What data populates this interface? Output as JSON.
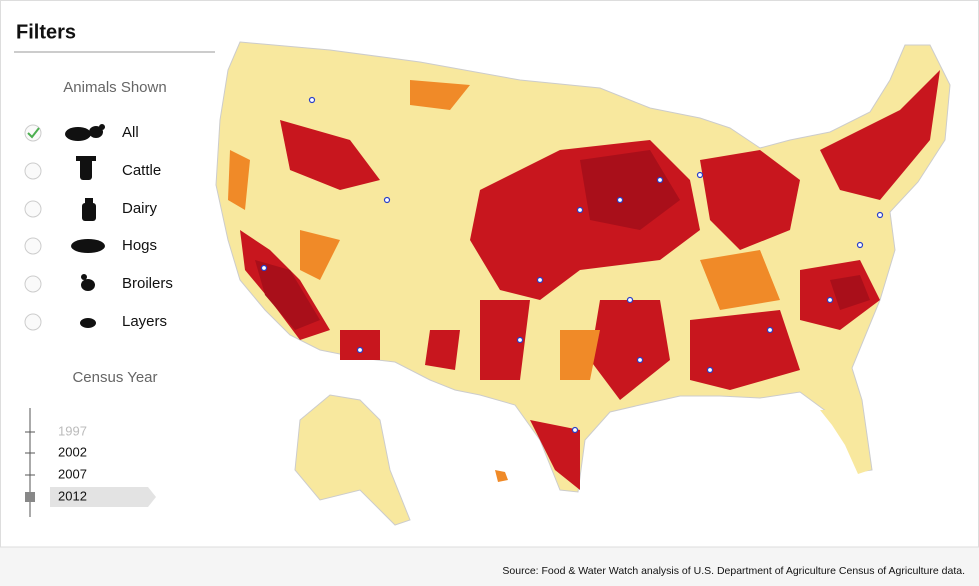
{
  "header": {
    "title": "Filters"
  },
  "animals": {
    "heading": "Animals Shown",
    "options": [
      {
        "label": "All",
        "checked": true
      },
      {
        "label": "Cattle",
        "checked": false
      },
      {
        "label": "Dairy",
        "checked": false
      },
      {
        "label": "Hogs",
        "checked": false
      },
      {
        "label": "Broilers",
        "checked": false
      },
      {
        "label": "Layers",
        "checked": false
      }
    ]
  },
  "census": {
    "heading": "Census Year",
    "years": [
      {
        "label": "1997",
        "selected": false,
        "disabled": true
      },
      {
        "label": "2002",
        "selected": false,
        "disabled": false
      },
      {
        "label": "2007",
        "selected": false,
        "disabled": false
      },
      {
        "label": "2012",
        "selected": true,
        "disabled": false
      }
    ]
  },
  "footer": {
    "source": "Source: Food & Water Watch analysis of U.S. Department of Agriculture Census of Agriculture data."
  }
}
